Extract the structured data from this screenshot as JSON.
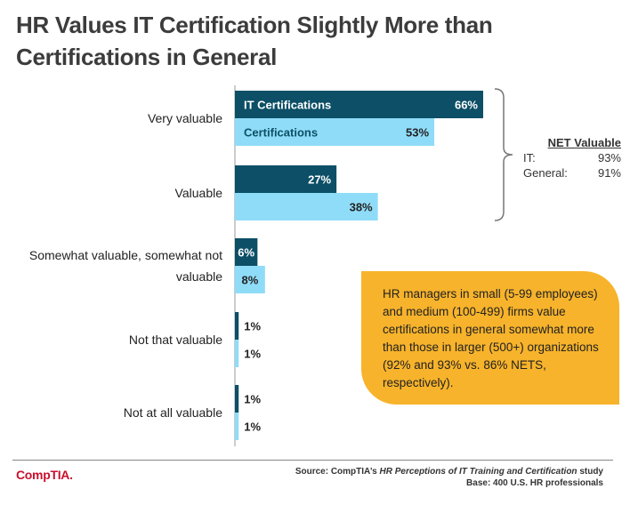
{
  "title_line1": "HR Values IT Certification Slightly More than",
  "title_line2": "Certifications in General",
  "chart_data": {
    "type": "bar",
    "orientation": "horizontal",
    "title": "HR Values IT Certification Slightly More than Certifications in General",
    "categories": [
      [
        "Very valuable"
      ],
      [
        "Valuable"
      ],
      [
        "Somewhat valuable, somewhat not",
        "valuable"
      ],
      [
        "Not that valuable"
      ],
      [
        "Not at all valuable"
      ]
    ],
    "series": [
      {
        "name": "IT Certifications",
        "color": "#0c4f66",
        "values": [
          66,
          27,
          6,
          1,
          1
        ],
        "labels": [
          "66%",
          "27%",
          "6%",
          "1%",
          "1%"
        ]
      },
      {
        "name": "Certifications",
        "color": "#8fdcf8",
        "values": [
          53,
          38,
          8,
          1,
          1
        ],
        "labels": [
          "53%",
          "38%",
          "8%",
          "1%",
          "1%"
        ]
      }
    ],
    "xlim": [
      0,
      66
    ],
    "grid": false
  },
  "net": {
    "title": "NET Valuable",
    "it_label": "IT:",
    "it_value": "93%",
    "general_label": "General:",
    "general_value": "91%"
  },
  "callout": {
    "text": "HR managers in small (5-99 employees) and medium (100-499) firms value certifications in general somewhat more than those in larger (500+) organizations (92% and 93% vs. 86% NETS, respectively)."
  },
  "footer": {
    "logo": "CompTIA.",
    "source_prefix": "Source: CompTIA’s ",
    "source_italic": "HR Perceptions of IT Training and Certification",
    "source_suffix": " study",
    "base": "Base: 400 U.S. HR professionals"
  }
}
